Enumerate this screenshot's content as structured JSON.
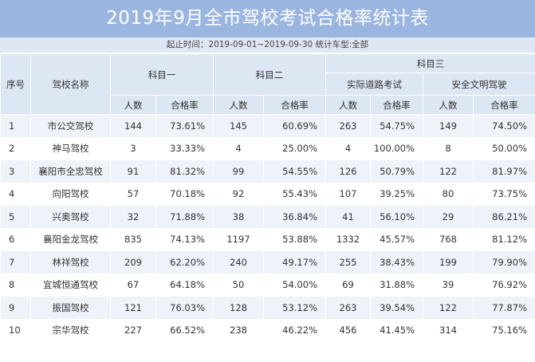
{
  "title": "2019年9月全市驾校考试合格率统计表",
  "subtitle": "起止时间：2019-09-01~2019-09-30 统计车型:全部",
  "headers": {
    "index": "序号",
    "school": "驾校名称",
    "subject1": "科目一",
    "subject2": "科目二",
    "subject3": "科目三",
    "road_test": "实际道路考试",
    "safe_driving": "安全文明驾驶",
    "count": "人数",
    "rate": "合格率"
  },
  "rows": [
    {
      "no": "1",
      "name": "市公交驾校",
      "s1n": "144",
      "s1r": "73.61%",
      "s2n": "145",
      "s2r": "60.69%",
      "rdn": "263",
      "rdr": "54.75%",
      "sfn": "149",
      "sfr": "74.50%"
    },
    {
      "no": "2",
      "name": "神马驾校",
      "s1n": "3",
      "s1r": "33.33%",
      "s2n": "4",
      "s2r": "25.00%",
      "rdn": "4",
      "rdr": "100.00%",
      "sfn": "8",
      "sfr": "50.00%"
    },
    {
      "no": "3",
      "name": "襄阳市全忠驾校",
      "s1n": "91",
      "s1r": "81.32%",
      "s2n": "99",
      "s2r": "54.55%",
      "rdn": "126",
      "rdr": "50.79%",
      "sfn": "122",
      "sfr": "81.97%"
    },
    {
      "no": "4",
      "name": "向阳驾校",
      "s1n": "57",
      "s1r": "70.18%",
      "s2n": "92",
      "s2r": "55.43%",
      "rdn": "107",
      "rdr": "39.25%",
      "sfn": "80",
      "sfr": "73.75%"
    },
    {
      "no": "5",
      "name": "兴奥驾校",
      "s1n": "32",
      "s1r": "71.88%",
      "s2n": "38",
      "s2r": "36.84%",
      "rdn": "41",
      "rdr": "56.10%",
      "sfn": "29",
      "sfr": "86.21%"
    },
    {
      "no": "6",
      "name": "襄阳金龙驾校",
      "s1n": "835",
      "s1r": "74.13%",
      "s2n": "1197",
      "s2r": "53.88%",
      "rdn": "1332",
      "rdr": "45.57%",
      "sfn": "768",
      "sfr": "81.12%"
    },
    {
      "no": "7",
      "name": "林祥驾校",
      "s1n": "209",
      "s1r": "62.20%",
      "s2n": "240",
      "s2r": "49.17%",
      "rdn": "255",
      "rdr": "38.43%",
      "sfn": "199",
      "sfr": "79.90%"
    },
    {
      "no": "8",
      "name": "宜城恒通驾校",
      "s1n": "67",
      "s1r": "64.18%",
      "s2n": "50",
      "s2r": "54.00%",
      "rdn": "69",
      "rdr": "31.88%",
      "sfn": "39",
      "sfr": "76.92%"
    },
    {
      "no": "9",
      "name": "振国驾校",
      "s1n": "121",
      "s1r": "76.03%",
      "s2n": "128",
      "s2r": "53.12%",
      "rdn": "263",
      "rdr": "39.54%",
      "sfn": "122",
      "sfr": "77.87%"
    },
    {
      "no": "10",
      "name": "宗华驾校",
      "s1n": "227",
      "s1r": "66.52%",
      "s2n": "238",
      "s2r": "46.22%",
      "rdn": "456",
      "rdr": "41.45%",
      "sfn": "314",
      "sfr": "75.16%"
    }
  ]
}
